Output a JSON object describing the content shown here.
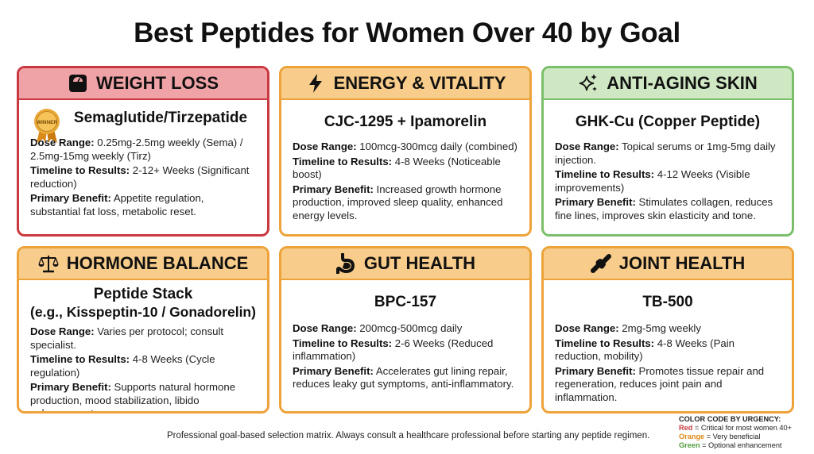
{
  "title": "Best Peptides for Women Over 40 by Goal",
  "labels": {
    "dose": "Dose Range:",
    "timeline": "Timeline to Results:",
    "benefit": "Primary Benefit:"
  },
  "badge_text": "WINNER",
  "cards": [
    {
      "goal": "WEIGHT LOSS",
      "icon": "scale-icon",
      "color": "red",
      "peptide": "Semaglutide/Tirzepatide",
      "dose": "0.25mg-2.5mg weekly (Sema) / 2.5mg-15mg weekly (Tirz)",
      "timeline": "2-12+ Weeks (Significant reduction)",
      "benefit": "Appetite regulation, substantial fat loss, metabolic reset."
    },
    {
      "goal": "ENERGY & VITALITY",
      "icon": "lightning-icon",
      "color": "orange",
      "peptide": "CJC-1295 + Ipamorelin",
      "dose": "100mcg-300mcg daily (combined)",
      "timeline": "4-8 Weeks (Noticeable boost)",
      "benefit": "Increased growth hormone production, improved sleep quality, enhanced energy levels."
    },
    {
      "goal": "ANTI-AGING SKIN",
      "icon": "sparkle-icon",
      "color": "green",
      "peptide": "GHK-Cu (Copper Peptide)",
      "dose": "Topical serums or 1mg-5mg daily injection.",
      "timeline": "4-12 Weeks (Visible improvements)",
      "benefit": "Stimulates collagen, reduces fine lines, improves skin elasticity and tone."
    },
    {
      "goal": "HORMONE BALANCE",
      "icon": "balance-icon",
      "color": "orange",
      "peptide": "Peptide Stack",
      "peptide2": "(e.g., Kisspeptin-10 / Gonadorelin)",
      "dose": "Varies per protocol; consult specialist.",
      "timeline": "4-8 Weeks (Cycle regulation)",
      "benefit": "Supports natural hormone production, mood stabilization, libido enhancement."
    },
    {
      "goal": "GUT HEALTH",
      "icon": "stomach-icon",
      "color": "orange",
      "peptide": "BPC-157",
      "dose": "200mcg-500mcg daily",
      "timeline": "2-6 Weeks (Reduced inflammation)",
      "benefit": "Accelerates gut lining repair, reduces leaky gut symptoms, anti-inflammatory."
    },
    {
      "goal": "JOINT HEALTH",
      "icon": "joint-icon",
      "color": "orange",
      "peptide": "TB-500",
      "dose": "2mg-5mg weekly",
      "timeline": "4-8 Weeks (Pain reduction, mobility)",
      "benefit": "Promotes tissue repair and regeneration, reduces joint pain and inflammation."
    }
  ],
  "footer": "Professional goal-based selection matrix. Always consult a healthcare professional before starting any peptide regimen.",
  "legend": {
    "title": "COLOR CODE BY URGENCY:",
    "red_word": "Red",
    "red_text": " = Critical for most women 40+",
    "orange_word": "Orange",
    "orange_text": " = Very beneficial",
    "green_word": "Green",
    "green_text": " = Optional enhancement"
  }
}
